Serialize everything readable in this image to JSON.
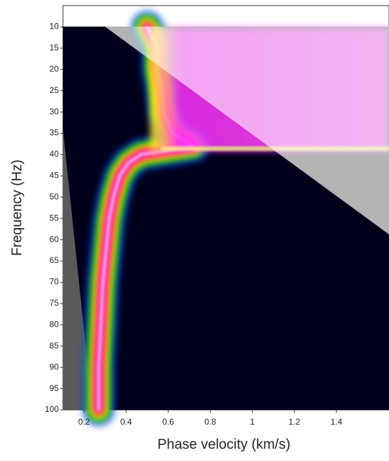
{
  "chart_data": {
    "type": "dispersion",
    "xlabel": "Phase velocity (km/s)",
    "ylabel": "Frequency (Hz)",
    "xlim": [
      0.1,
      1.65
    ],
    "ylim": [
      5,
      100
    ],
    "xticks": [
      0.2,
      0.4,
      0.6,
      0.8,
      1,
      1.2,
      1.4
    ],
    "yticks": [
      10,
      15,
      20,
      25,
      30,
      35,
      40,
      45,
      50,
      55,
      60,
      65,
      70,
      75,
      80,
      85,
      90,
      95,
      100
    ],
    "colormap": [
      "#00001a",
      "#1040ff",
      "#00d000",
      "#ffff00",
      "#ff2020",
      "#ff20ff",
      "#ffe8ff"
    ],
    "ridge": {
      "velocity": [
        0.5,
        0.55,
        0.55,
        0.57,
        0.58,
        0.62,
        0.72,
        0.47,
        0.41,
        0.37,
        0.34,
        0.32,
        0.31,
        0.3,
        0.29,
        0.285,
        0.28,
        0.275,
        0.27,
        0.27,
        0.27
      ],
      "frequency": [
        10,
        15,
        20,
        25,
        30,
        35,
        38,
        40,
        42,
        45,
        50,
        55,
        60,
        65,
        70,
        75,
        80,
        85,
        90,
        95,
        100
      ]
    }
  }
}
